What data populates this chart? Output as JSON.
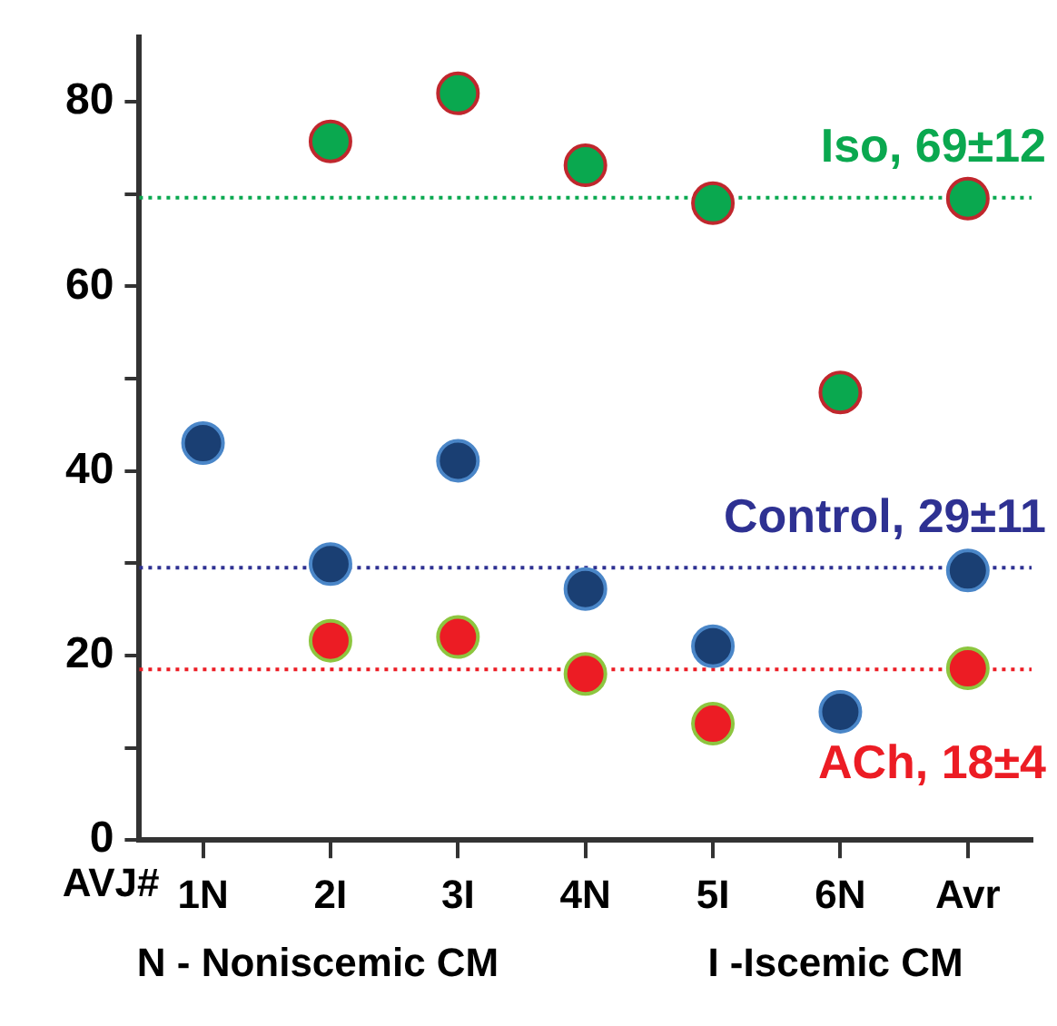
{
  "chart_data": {
    "type": "scatter",
    "xlabel": "AVJ#",
    "categories": [
      "1N",
      "2I",
      "3I",
      "4N",
      "5I",
      "6N",
      "Avr"
    ],
    "series": [
      {
        "color": "#0aa84f",
        "values": [
          null,
          75.7,
          80.9,
          73.1,
          69.0,
          48.5,
          69.5
        ]
      },
      {
        "color": "#1a3f73",
        "values": [
          43.0,
          29.9,
          41.1,
          27.2,
          21.0,
          13.9,
          29.2
        ]
      },
      {
        "color": "#ec1c24",
        "values": [
          null,
          21.6,
          22.0,
          18.0,
          12.6,
          null,
          18.6
        ]
      }
    ],
    "ylim": [
      0,
      87
    ],
    "yticks": [
      0,
      {
        "value": 10,
        "label": null
      },
      20,
      {
        "value": 30,
        "label": null
      },
      40,
      {
        "value": 50,
        "label": null
      },
      60,
      {
        "value": 70,
        "label": null
      },
      80
    ],
    "ref_lines": [
      {
        "axis": "y",
        "value": 69.6,
        "label": "Iso, 69±12",
        "color": "#0aa84f",
        "line_style": "dotted"
      },
      {
        "axis": "y",
        "value": 29.5,
        "label": "Control, 29±11",
        "color": "#2e3192",
        "line_style": "dotted"
      },
      {
        "axis": "y",
        "value": 18.5,
        "label": "ACh, 18±4",
        "color": "#ec1c24",
        "line_style": "dotted"
      }
    ],
    "annotations": [
      "N - Noniscemic CM",
      "I -Iscemic CM"
    ],
    "marker": "circle",
    "grid": false,
    "legend": false
  }
}
